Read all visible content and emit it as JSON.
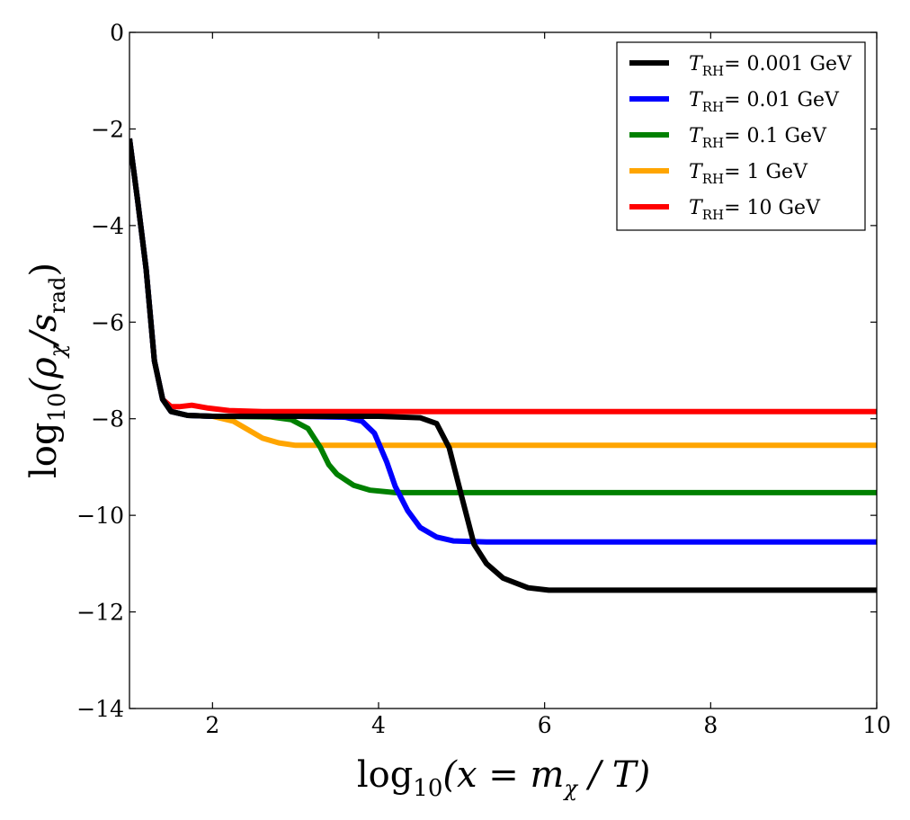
{
  "chart_data": {
    "type": "line",
    "title": "",
    "xlabel": {
      "main": "log",
      "sub": "10",
      "expr": "(x = m",
      "expr_sub": "χ",
      "tail": " / T)"
    },
    "ylabel": {
      "main": "log",
      "sub": "10",
      "expr": "(ρ",
      "expr_sub": "χ",
      "mid": "/s",
      "mid_sub": "rad",
      "tail": ")"
    },
    "xlim": [
      1,
      10
    ],
    "ylim": [
      -14,
      0
    ],
    "xticks": [
      2,
      4,
      6,
      8,
      10
    ],
    "yticks": [
      0,
      -2,
      -4,
      -6,
      -8,
      -10,
      -12,
      -14
    ],
    "xtick_labels": [
      "2",
      "4",
      "6",
      "8",
      "10"
    ],
    "ytick_labels": [
      "0",
      "−2",
      "−4",
      "−6",
      "−8",
      "−10",
      "−12",
      "−14"
    ],
    "legend_position": "top-right",
    "grid": false,
    "series": [
      {
        "name": "T_RH = 0.001 GeV",
        "legend_symbol": "T",
        "legend_sub": "RH",
        "legend_value": "= 0.001 GeV",
        "color": "#000000",
        "x": [
          1.0,
          1.1,
          1.2,
          1.3,
          1.4,
          1.5,
          1.7,
          2.0,
          3.0,
          4.0,
          4.5,
          4.7,
          4.85,
          5.0,
          5.15,
          5.3,
          5.5,
          5.8,
          6.05,
          7.0,
          10.0
        ],
        "y": [
          -2.2,
          -3.5,
          -4.9,
          -6.8,
          -7.6,
          -7.85,
          -7.93,
          -7.95,
          -7.95,
          -7.95,
          -7.98,
          -8.1,
          -8.6,
          -9.6,
          -10.6,
          -11.0,
          -11.3,
          -11.5,
          -11.55,
          -11.55,
          -11.55
        ]
      },
      {
        "name": "T_RH = 0.01 GeV",
        "legend_symbol": "T",
        "legend_sub": "RH",
        "legend_value": "= 0.01 GeV",
        "color": "#0000ff",
        "x": [
          1.0,
          1.1,
          1.2,
          1.3,
          1.4,
          1.5,
          1.7,
          2.0,
          3.0,
          3.6,
          3.8,
          3.95,
          4.1,
          4.2,
          4.35,
          4.5,
          4.7,
          4.9,
          5.3,
          10.0
        ],
        "y": [
          -2.2,
          -3.5,
          -4.9,
          -6.8,
          -7.6,
          -7.85,
          -7.93,
          -7.95,
          -7.95,
          -7.97,
          -8.05,
          -8.3,
          -8.9,
          -9.4,
          -9.9,
          -10.25,
          -10.45,
          -10.53,
          -10.55,
          -10.55
        ]
      },
      {
        "name": "T_RH = 0.1 GeV",
        "legend_symbol": "T",
        "legend_sub": "RH",
        "legend_value": "= 0.1 GeV",
        "color": "#008000",
        "x": [
          1.0,
          1.1,
          1.2,
          1.3,
          1.4,
          1.5,
          1.7,
          2.0,
          2.7,
          2.95,
          3.15,
          3.3,
          3.4,
          3.5,
          3.7,
          3.9,
          4.2,
          10.0
        ],
        "y": [
          -2.2,
          -3.5,
          -4.9,
          -6.8,
          -7.6,
          -7.85,
          -7.93,
          -7.95,
          -7.96,
          -8.02,
          -8.2,
          -8.6,
          -8.95,
          -9.15,
          -9.38,
          -9.48,
          -9.53,
          -9.53
        ]
      },
      {
        "name": "T_RH = 1 GeV",
        "legend_symbol": "T",
        "legend_sub": "RH",
        "legend_value": "= 1 GeV",
        "color": "#ffa500",
        "x": [
          1.0,
          1.1,
          1.2,
          1.3,
          1.4,
          1.5,
          1.7,
          2.0,
          2.25,
          2.45,
          2.6,
          2.8,
          3.0,
          3.3,
          10.0
        ],
        "y": [
          -2.2,
          -3.5,
          -4.9,
          -6.8,
          -7.6,
          -7.85,
          -7.93,
          -7.95,
          -8.05,
          -8.25,
          -8.4,
          -8.5,
          -8.55,
          -8.55,
          -8.55
        ]
      },
      {
        "name": "T_RH = 10 GeV",
        "legend_symbol": "T",
        "legend_sub": "RH",
        "legend_value": "= 10 GeV",
        "color": "#ff0000",
        "x": [
          1.0,
          1.1,
          1.2,
          1.3,
          1.4,
          1.5,
          1.6,
          1.75,
          1.95,
          2.2,
          2.6,
          3.5,
          10.0
        ],
        "y": [
          -2.2,
          -3.5,
          -4.9,
          -6.8,
          -7.6,
          -7.75,
          -7.75,
          -7.72,
          -7.78,
          -7.83,
          -7.85,
          -7.85,
          -7.85
        ]
      }
    ]
  }
}
